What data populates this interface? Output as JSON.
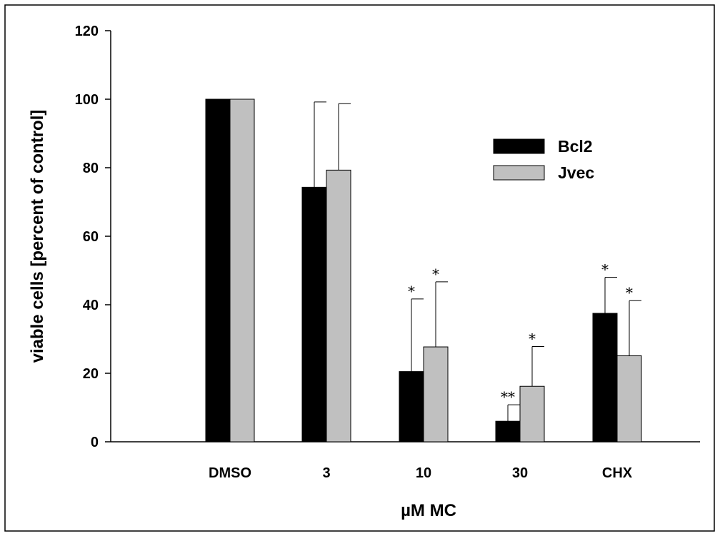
{
  "chart_data": {
    "type": "bar",
    "xlabel": "µM MC",
    "ylabel": "viable cells [percent of control]",
    "ylim": [
      0,
      120
    ],
    "yticks": [
      0,
      20,
      40,
      60,
      80,
      100,
      120
    ],
    "categories": [
      "DMSO",
      "3",
      "10",
      "30",
      "CHX"
    ],
    "series": [
      {
        "name": "Bcl2",
        "color": "#000000",
        "values": [
          100,
          74.3,
          20.5,
          6.0,
          37.5
        ],
        "error_upper": [
          0,
          24.9,
          21.2,
          4.8,
          10.5
        ],
        "significance": [
          "",
          "",
          "*",
          "**",
          "*"
        ]
      },
      {
        "name": "Jvec",
        "color": "#c0c0c0",
        "values": [
          100,
          79.3,
          27.7,
          16.2,
          25.1
        ],
        "error_upper": [
          0,
          19.4,
          19.0,
          11.6,
          16.1
        ],
        "significance": [
          "",
          "",
          "*",
          "*",
          "*"
        ]
      }
    ],
    "legend_position": "top-right",
    "grid": false
  }
}
